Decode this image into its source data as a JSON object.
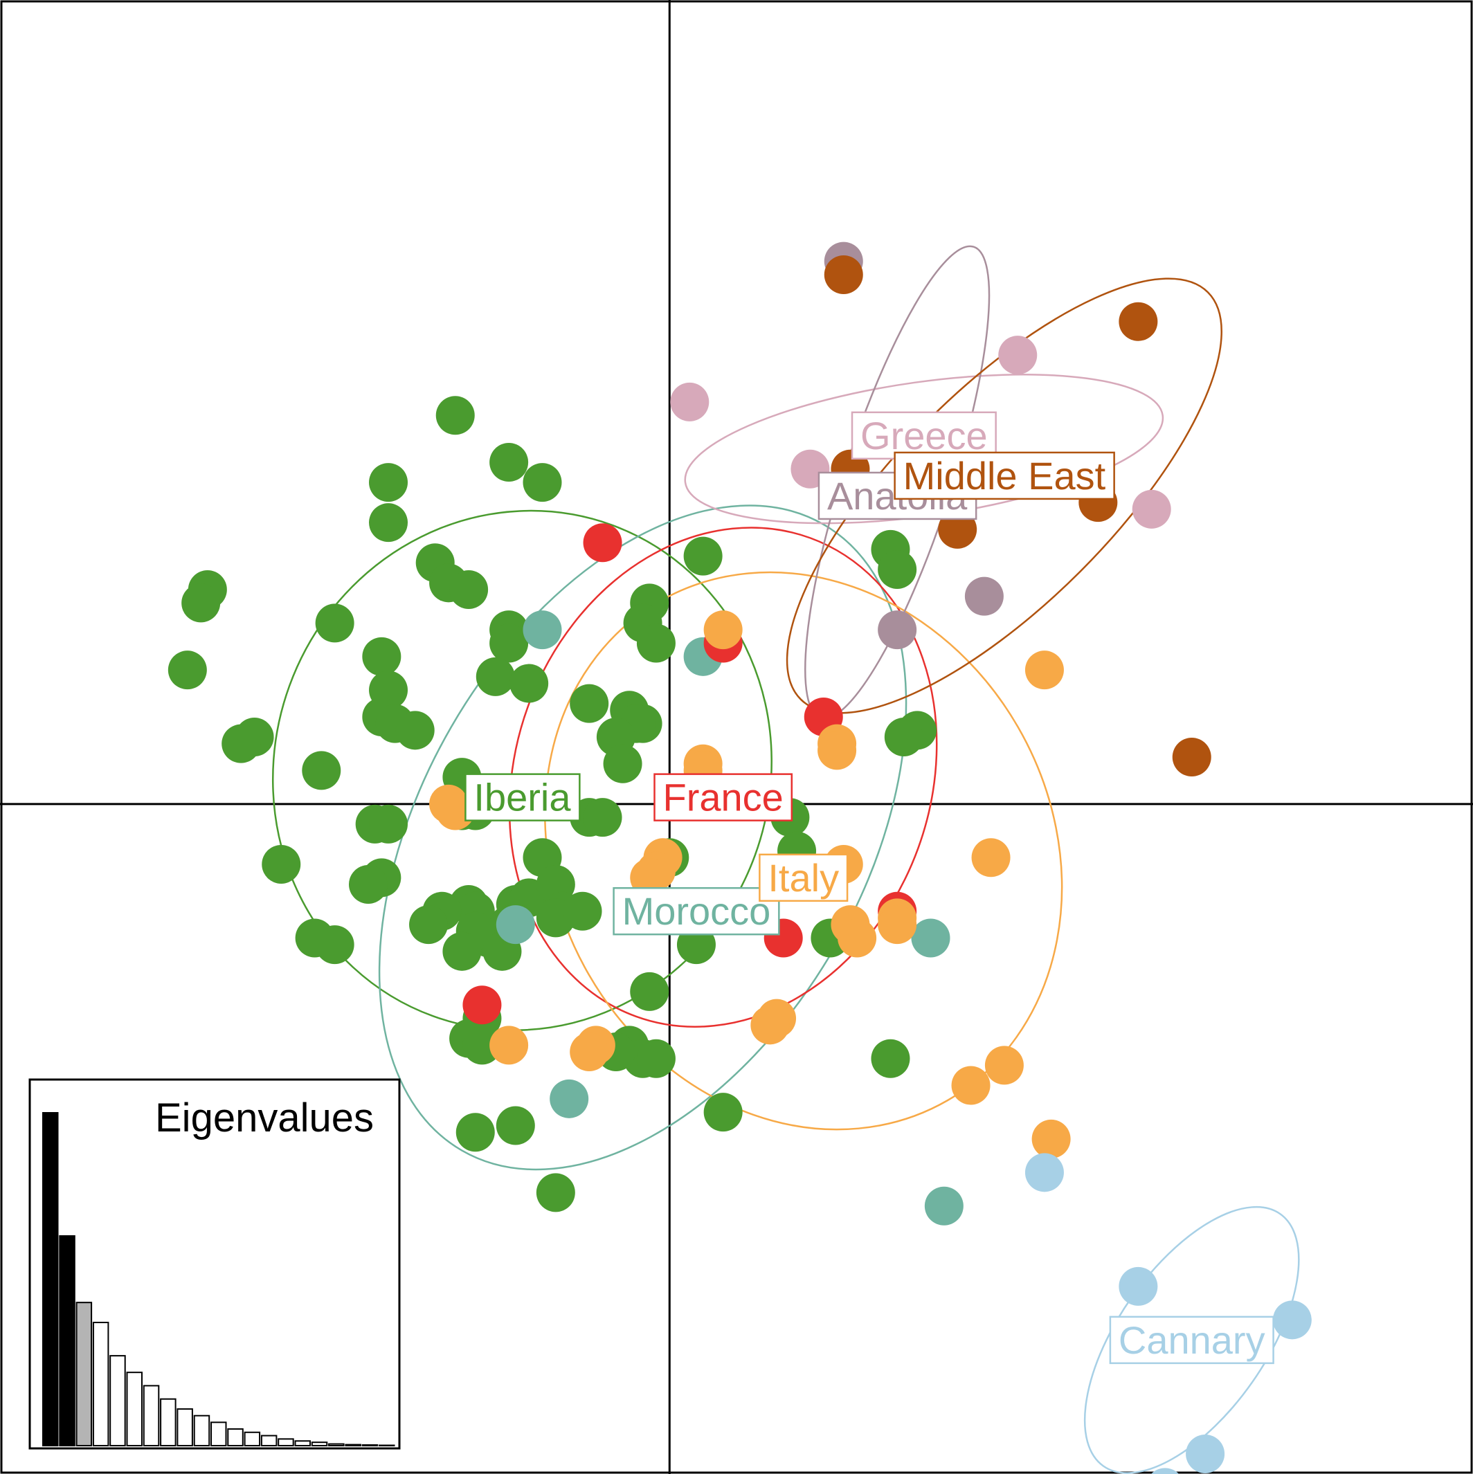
{
  "chart_data": {
    "type": "scatter",
    "title": "",
    "xlabel": "",
    "ylabel": "",
    "xlim": [
      -1.0,
      1.2
    ],
    "ylim": [
      -1.0,
      1.2
    ],
    "grid": false,
    "colors": {
      "Iberia": "#4a9b2f",
      "Morocco": "#6fb3a0",
      "France": "#e8312f",
      "Italy": "#f7a947",
      "Greece": "#d7a9ba",
      "Anatolia": "#a88e9b",
      "Middle East": "#b0530f",
      "Cannary": "#a7d0e6"
    },
    "groups": [
      {
        "name": "Iberia",
        "label": "Iberia",
        "label_pos": [
          -0.22,
          0.01
        ],
        "ellipse": {
          "center": [
            -0.22,
            0.05
          ],
          "rx": 0.37,
          "ry": 0.39,
          "angle": -20
        },
        "points": [
          [
            -0.32,
            0.58
          ],
          [
            -0.24,
            0.51
          ],
          [
            -0.19,
            0.48
          ],
          [
            -0.42,
            0.48
          ],
          [
            -0.42,
            0.42
          ],
          [
            -0.35,
            0.36
          ],
          [
            -0.33,
            0.33
          ],
          [
            -0.3,
            0.32
          ],
          [
            -0.69,
            0.32
          ],
          [
            -0.7,
            0.3
          ],
          [
            -0.5,
            0.27
          ],
          [
            -0.24,
            0.26
          ],
          [
            -0.24,
            0.24
          ],
          [
            -0.43,
            0.22
          ],
          [
            -0.72,
            0.2
          ],
          [
            -0.42,
            0.17
          ],
          [
            -0.26,
            0.19
          ],
          [
            -0.21,
            0.18
          ],
          [
            -0.43,
            0.13
          ],
          [
            -0.41,
            0.12
          ],
          [
            -0.38,
            0.11
          ],
          [
            -0.62,
            0.1
          ],
          [
            -0.64,
            0.09
          ],
          [
            -0.52,
            0.05
          ],
          [
            -0.31,
            0.04
          ],
          [
            -0.12,
            0.15
          ],
          [
            -0.06,
            0.14
          ],
          [
            -0.04,
            0.12
          ],
          [
            -0.03,
            0.3
          ],
          [
            -0.04,
            0.27
          ],
          [
            -0.05,
            0.12
          ],
          [
            -0.08,
            0.1
          ],
          [
            -0.07,
            0.06
          ],
          [
            -0.02,
            0.24
          ],
          [
            0.05,
            0.37
          ],
          [
            -0.31,
            -0.01
          ],
          [
            -0.29,
            -0.01
          ],
          [
            -0.44,
            -0.03
          ],
          [
            -0.42,
            -0.03
          ],
          [
            -0.12,
            -0.02
          ],
          [
            -0.1,
            -0.02
          ],
          [
            -0.58,
            -0.09
          ],
          [
            -0.43,
            -0.11
          ],
          [
            -0.45,
            -0.12
          ],
          [
            -0.3,
            -0.15
          ],
          [
            -0.29,
            -0.16
          ],
          [
            -0.23,
            -0.15
          ],
          [
            -0.21,
            -0.14
          ],
          [
            -0.19,
            -0.08
          ],
          [
            -0.17,
            -0.12
          ],
          [
            -0.16,
            -0.16
          ],
          [
            -0.17,
            -0.17
          ],
          [
            -0.13,
            -0.16
          ],
          [
            -0.24,
            -0.18
          ],
          [
            -0.27,
            -0.2
          ],
          [
            -0.29,
            -0.19
          ],
          [
            -0.34,
            -0.16
          ],
          [
            -0.36,
            -0.18
          ],
          [
            -0.5,
            -0.21
          ],
          [
            -0.53,
            -0.2
          ],
          [
            -0.25,
            -0.22
          ],
          [
            -0.31,
            -0.22
          ],
          [
            0.0,
            -0.08
          ],
          [
            0.04,
            -0.21
          ],
          [
            -0.03,
            -0.28
          ],
          [
            -0.06,
            -0.36
          ],
          [
            -0.04,
            -0.38
          ],
          [
            -0.08,
            -0.37
          ],
          [
            -0.02,
            -0.38
          ],
          [
            0.08,
            -0.46
          ],
          [
            0.18,
            -0.02
          ],
          [
            0.19,
            -0.07
          ],
          [
            0.24,
            -0.2
          ],
          [
            0.33,
            0.38
          ],
          [
            0.34,
            0.35
          ],
          [
            0.37,
            0.11
          ],
          [
            0.35,
            0.1
          ],
          [
            0.33,
            -0.38
          ],
          [
            -0.28,
            -0.32
          ],
          [
            -0.3,
            -0.35
          ],
          [
            -0.28,
            -0.36
          ],
          [
            -0.29,
            -0.49
          ],
          [
            -0.23,
            -0.48
          ],
          [
            -0.17,
            -0.58
          ]
        ]
      },
      {
        "name": "Morocco",
        "label": "Morocco",
        "label_pos": [
          0.04,
          -0.16
        ],
        "ellipse": {
          "center": [
            -0.04,
            -0.05
          ],
          "rx": 0.54,
          "ry": 0.33,
          "angle": 60
        },
        "points": [
          [
            -0.19,
            0.26
          ],
          [
            0.05,
            0.22
          ],
          [
            -0.23,
            -0.18
          ],
          [
            0.39,
            -0.2
          ],
          [
            -0.15,
            -0.44
          ],
          [
            0.41,
            -0.6
          ]
        ]
      },
      {
        "name": "France",
        "label": "France",
        "label_pos": [
          0.08,
          0.01
        ],
        "ellipse": {
          "center": [
            0.08,
            0.04
          ],
          "rx": 0.31,
          "ry": 0.38,
          "angle": -20
        },
        "points": [
          [
            -0.1,
            0.39
          ],
          [
            0.08,
            0.24
          ],
          [
            0.23,
            0.13
          ],
          [
            0.34,
            -0.16
          ],
          [
            0.17,
            -0.2
          ],
          [
            -0.28,
            -0.3
          ]
        ]
      },
      {
        "name": "Italy",
        "label": "Italy",
        "label_pos": [
          0.2,
          -0.11
        ],
        "ellipse": {
          "center": [
            0.2,
            -0.07
          ],
          "rx": 0.37,
          "ry": 0.43,
          "angle": 30
        },
        "points": [
          [
            0.08,
            0.26
          ],
          [
            0.25,
            0.09
          ],
          [
            0.25,
            0.08
          ],
          [
            0.05,
            0.06
          ],
          [
            0.05,
            0.05
          ],
          [
            -0.32,
            -0.01
          ],
          [
            -0.33,
            0.0
          ],
          [
            -0.01,
            -0.08
          ],
          [
            -0.02,
            -0.1
          ],
          [
            -0.03,
            -0.11
          ],
          [
            0.26,
            -0.09
          ],
          [
            0.27,
            -0.18
          ],
          [
            0.28,
            -0.2
          ],
          [
            0.34,
            -0.17
          ],
          [
            0.34,
            -0.18
          ],
          [
            0.48,
            -0.08
          ],
          [
            0.16,
            -0.32
          ],
          [
            0.15,
            -0.33
          ],
          [
            -0.11,
            -0.36
          ],
          [
            -0.12,
            -0.37
          ],
          [
            -0.24,
            -0.36
          ],
          [
            0.5,
            -0.39
          ],
          [
            0.45,
            -0.42
          ],
          [
            0.57,
            -0.5
          ],
          [
            0.56,
            0.2
          ]
        ]
      },
      {
        "name": "Greece",
        "label": "Greece",
        "label_pos": [
          0.38,
          0.55
        ],
        "ellipse": {
          "center": [
            0.38,
            0.53
          ],
          "rx": 0.36,
          "ry": 0.1,
          "angle": 8
        },
        "points": [
          [
            0.03,
            0.6
          ],
          [
            0.52,
            0.67
          ],
          [
            0.21,
            0.5
          ],
          [
            0.72,
            0.44
          ]
        ]
      },
      {
        "name": "Anatolia",
        "label": "Anatolia",
        "label_pos": [
          0.34,
          0.46
        ],
        "ellipse": {
          "center": [
            0.34,
            0.48
          ],
          "rx": 0.37,
          "ry": 0.08,
          "angle": 72
        },
        "points": [
          [
            0.26,
            0.81
          ],
          [
            0.47,
            0.31
          ],
          [
            0.34,
            0.26
          ]
        ]
      },
      {
        "name": "Middle East",
        "label": "Middle East",
        "label_pos": [
          0.5,
          0.49
        ],
        "ellipse": {
          "center": [
            0.5,
            0.46
          ],
          "rx": 0.43,
          "ry": 0.16,
          "angle": 45
        },
        "points": [
          [
            0.26,
            0.79
          ],
          [
            0.7,
            0.72
          ],
          [
            0.27,
            0.5
          ],
          [
            0.64,
            0.45
          ],
          [
            0.43,
            0.41
          ],
          [
            0.78,
            0.07
          ]
        ]
      },
      {
        "name": "Cannary",
        "label": "Cannary",
        "label_pos": [
          0.78,
          -0.8
        ],
        "ellipse": {
          "center": [
            0.78,
            -0.8
          ],
          "rx": 0.23,
          "ry": 0.11,
          "angle": 55
        },
        "points": [
          [
            0.56,
            -0.55
          ],
          [
            0.7,
            -0.72
          ],
          [
            0.93,
            -0.77
          ],
          [
            0.8,
            -0.97
          ],
          [
            0.74,
            -1.02
          ]
        ]
      }
    ],
    "eigenvalues": {
      "title": "Eigenvalues",
      "values": [
        100,
        63,
        43,
        37,
        27,
        22,
        18,
        14,
        11,
        9,
        7,
        5,
        4,
        3,
        2,
        1.4,
        1,
        0.5,
        0.3,
        0.2,
        0.1
      ],
      "kept_axes": 2,
      "highlighted": 3
    }
  }
}
